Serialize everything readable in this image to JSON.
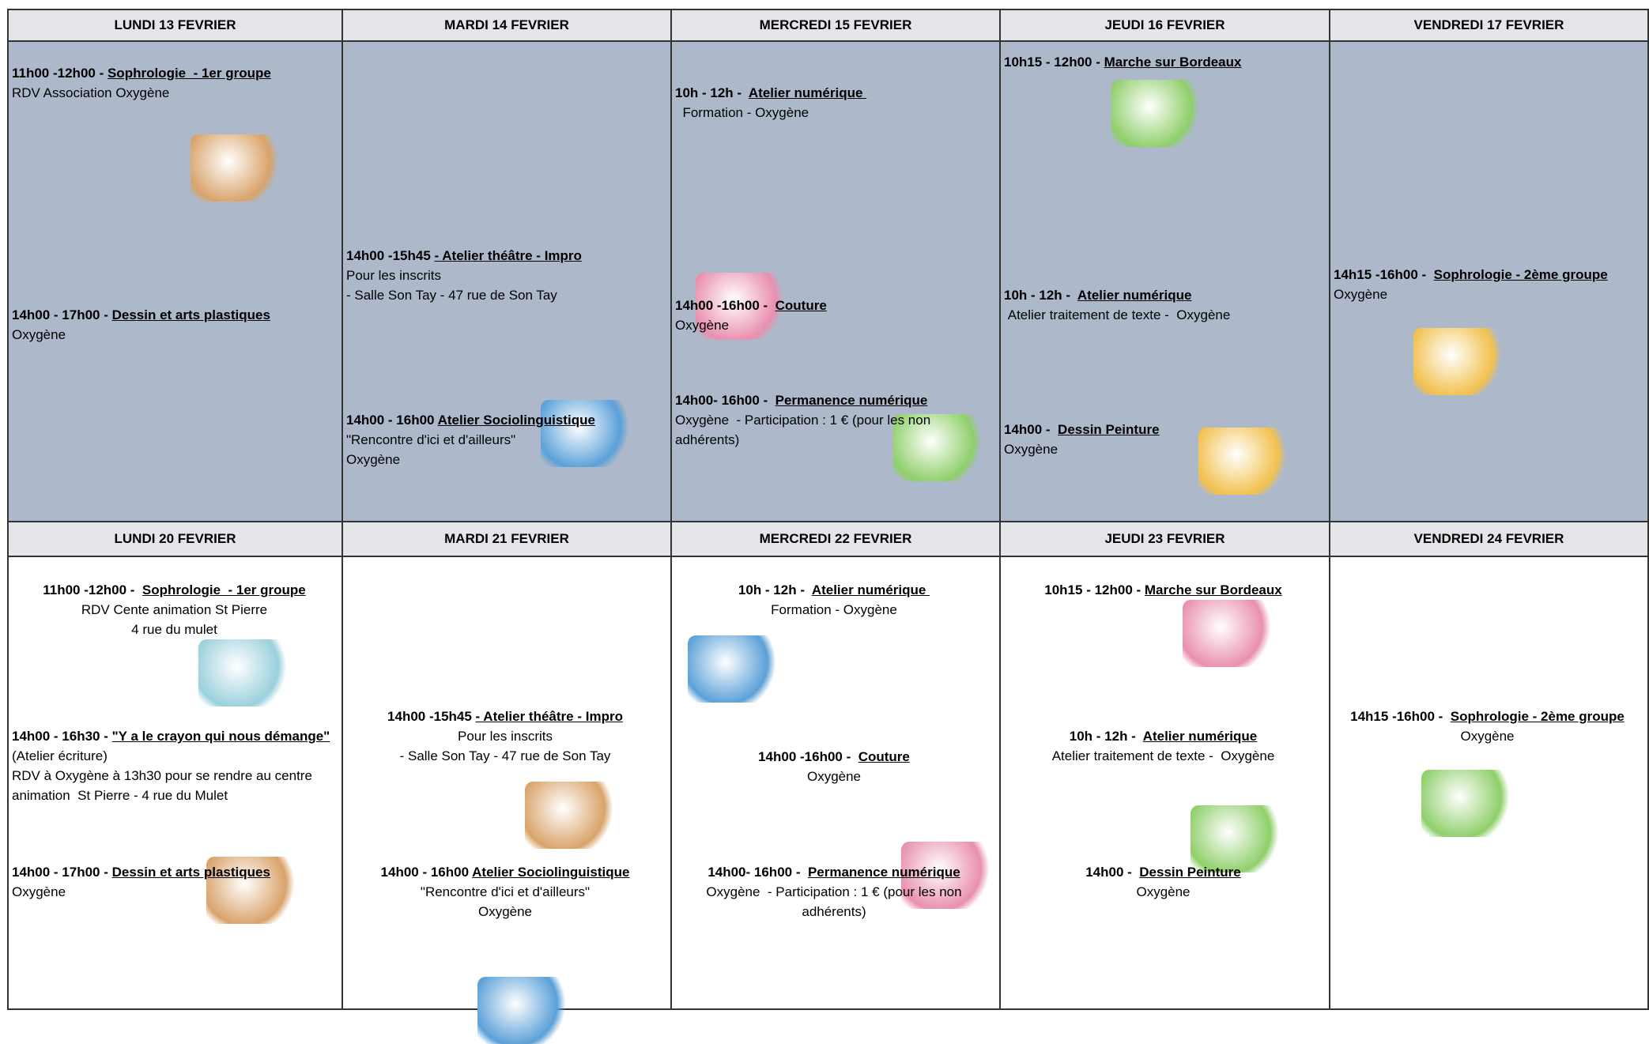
{
  "weeks": [
    {
      "days": [
        {
          "header": "LUNDI 13 FEVRIER",
          "events": [
            {
              "time": "11h00 -12h00 - ",
              "title": "Sophrologie  - 1er groupe",
              "lines": [
                "RDV Association Oxygène"
              ]
            },
            {
              "time": "14h00 - 17h00 - ",
              "title": "Dessin et arts plastiques",
              "lines": [
                "Oxygène"
              ]
            }
          ]
        },
        {
          "header": "MARDI 14 FEVRIER",
          "events": [
            {
              "time": "14h00 -15h45 ",
              "title": "- Atelier théâtre - Impro",
              "lines": [
                "Pour les inscrits",
                "- Salle Son Tay - 47 rue de Son Tay"
              ]
            },
            {
              "time": "14h00 - 16h00 ",
              "title": "Atelier Sociolinguistique",
              "lines": [
                "\"Rencontre d'ici et d'ailleurs\"",
                "Oxygène"
              ]
            }
          ]
        },
        {
          "header": "MERCREDI 15 FEVRIER",
          "events": [
            {
              "time": "10h - 12h -  ",
              "title": "Atelier numérique ",
              "lines": [
                "  Formation - Oxygène"
              ]
            },
            {
              "time": "14h00 -16h00 -  ",
              "title": "Couture",
              "lines": [
                "Oxygène"
              ]
            },
            {
              "time": "14h00- 16h00 -  ",
              "title": "Permanence numérique",
              "lines": [
                "Oxygène  - Participation : 1 € (pour les non adhérents)"
              ]
            }
          ]
        },
        {
          "header": "JEUDI 16 FEVRIER",
          "events": [
            {
              "time": "10h15 - 12h00 - ",
              "title": "Marche sur Bordeaux",
              "lines": []
            },
            {
              "time": "10h - 12h -  ",
              "title": "Atelier numérique",
              "lines": [
                " Atelier traitement de texte -  Oxygène"
              ]
            },
            {
              "time": "14h00 -  ",
              "title": "Dessin Peinture",
              "lines": [
                "Oxygène"
              ]
            }
          ]
        },
        {
          "header": "VENDREDI 17 FEVRIER",
          "events": [
            {
              "time": "14h15 -16h00 -  ",
              "title": "Sophrologie - 2ème groupe",
              "lines": [
                "Oxygène"
              ]
            }
          ]
        }
      ]
    },
    {
      "days": [
        {
          "header": "LUNDI 20 FEVRIER",
          "events": [
            {
              "time": "11h00 -12h00 -  ",
              "title": "Sophrologie  - 1er groupe",
              "lines": [
                "RDV Cente animation St Pierre",
                "4 rue du mulet"
              ]
            },
            {
              "time": "14h00 - 16h30  - ",
              "title": "\"Y a le crayon qui nous démange\"",
              "lines": [
                "(Atelier écriture)",
                "RDV à Oxygène à 13h30 pour se rendre au centre animation  St Pierre - 4 rue du Mulet"
              ]
            },
            {
              "time": "14h00 - 17h00 - ",
              "title": "Dessin et arts plastiques",
              "lines": [
                "Oxygène"
              ]
            }
          ]
        },
        {
          "header": "MARDI 21 FEVRIER",
          "events": [
            {
              "time": "14h00 -15h45 ",
              "title": "- Atelier théâtre - Impro",
              "lines": [
                "Pour les inscrits",
                "- Salle Son Tay - 47 rue de Son Tay"
              ]
            },
            {
              "time": "14h00 - 16h00 ",
              "title": "Atelier Sociolinguistique",
              "lines": [
                "\"Rencontre d'ici et d'ailleurs\"",
                "Oxygène"
              ]
            }
          ]
        },
        {
          "header": "MERCREDI 22 FEVRIER",
          "events": [
            {
              "time": "10h - 12h -  ",
              "title": "Atelier numérique ",
              "lines": [
                "Formation - Oxygène"
              ]
            },
            {
              "time": "14h00 -16h00 -  ",
              "title": "Couture",
              "lines": [
                "Oxygène"
              ]
            },
            {
              "time": "14h00- 16h00 -  ",
              "title": "Permanence numérique",
              "lines": [
                "Oxygène  - Participation : 1 € (pour les non adhérents)"
              ]
            }
          ]
        },
        {
          "header": "JEUDI 23 FEVRIER",
          "events": [
            {
              "time": "10h15 - 12h00 - ",
              "title": "Marche sur Bordeaux",
              "lines": []
            },
            {
              "time": "10h - 12h -  ",
              "title": "Atelier numérique",
              "lines": [
                "Atelier traitement de texte -  Oxygène"
              ]
            },
            {
              "time": "14h00 -  ",
              "title": "Dessin Peinture",
              "lines": [
                "Oxygène"
              ]
            }
          ]
        },
        {
          "header": "VENDREDI 24 FEVRIER",
          "events": [
            {
              "time": "14h15 -16h00 -  ",
              "title": "Sophrologie - 2ème groupe",
              "lines": [
                "Oxygène"
              ]
            }
          ]
        }
      ]
    }
  ]
}
